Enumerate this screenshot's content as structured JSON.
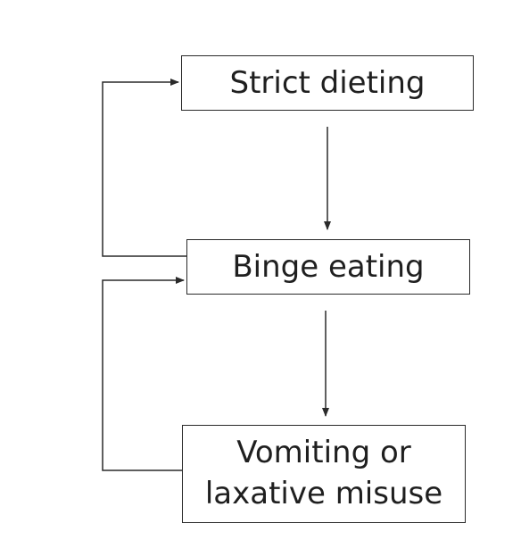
{
  "diagram": {
    "nodes": {
      "strict_dieting": {
        "label": "Strict dieting"
      },
      "binge_eating": {
        "label": "Binge eating"
      },
      "vomiting": {
        "line1": "Vomiting or",
        "line2": "laxative misuse"
      }
    },
    "colors": {
      "stroke": "#2a2a2a",
      "text": "#1f1f1f",
      "background": "#ffffff"
    }
  }
}
